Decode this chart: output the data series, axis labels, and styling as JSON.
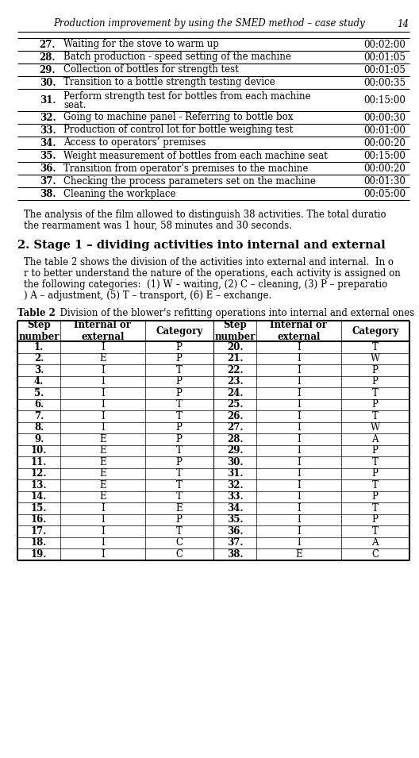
{
  "page_header": "Production improvement by using the SMED method – case study",
  "page_number": "14",
  "top_table_rows": [
    [
      "27.",
      "Waiting for the stove to warm up",
      "00:02:00"
    ],
    [
      "28.",
      "Batch production - speed setting of the machine",
      "00:01:05"
    ],
    [
      "29.",
      "Collection of bottles for strength test",
      "00:01:05"
    ],
    [
      "30.",
      "Transition to a bottle strength testing device",
      "00:00:35"
    ],
    [
      "31.",
      "Perform strength test for bottles from each machine\nseat.",
      "00:15:00"
    ],
    [
      "32.",
      "Going to machine panel - Referring to bottle box",
      "00:00:30"
    ],
    [
      "33.",
      "Production of control lot for bottle weighing test",
      "00:01:00"
    ],
    [
      "34.",
      "Access to operators’ premises",
      "00:00:20"
    ],
    [
      "35.",
      "Weight measurement of bottles from each machine seat",
      "00:15:00"
    ],
    [
      "36.",
      "Transition from operator’s premises to the machine",
      "00:00:20"
    ],
    [
      "37.",
      "Checking the process parameters set on the machine",
      "00:01:30"
    ],
    [
      "38.",
      "Cleaning the workplace",
      "00:05:00"
    ]
  ],
  "paragraph1_lines": [
    "The analysis of the film allowed to distinguish 38 activities. The total duratio",
    "the rearmament was 1 hour, 58 minutes and 30 seconds."
  ],
  "section_title": "2. Stage 1 – dividing activities into internal and external",
  "paragraph2_lines": [
    "The table 2 shows the division of the activities into external and internal.  In o",
    "r to better understand the nature of the operations, each activity is assigned on",
    "the following categories:  (1) W – waiting, (2) C – cleaning, (3) P – preparatio",
    ") A – adjustment, (5) T – transport, (6) E – exchange."
  ],
  "table2_caption": "Table 2   Division of the blower's refitting operations into internal and external ones",
  "table2_headers": [
    "Step\nnumber",
    "Internal or\nexternal",
    "Category",
    "Step\nnumber",
    "Internal or\nexternal",
    "Category"
  ],
  "table2_data": [
    [
      "1.",
      "I",
      "P",
      "20.",
      "I",
      "T"
    ],
    [
      "2.",
      "E",
      "P",
      "21.",
      "I",
      "W"
    ],
    [
      "3.",
      "I",
      "T",
      "22.",
      "I",
      "P"
    ],
    [
      "4.",
      "I",
      "P",
      "23.",
      "I",
      "P"
    ],
    [
      "5.",
      "I",
      "P",
      "24.",
      "I",
      "T"
    ],
    [
      "6.",
      "I",
      "T",
      "25.",
      "I",
      "P"
    ],
    [
      "7.",
      "I",
      "T",
      "26.",
      "I",
      "T"
    ],
    [
      "8.",
      "I",
      "P",
      "27.",
      "I",
      "W"
    ],
    [
      "9.",
      "E",
      "P",
      "28.",
      "I",
      "A"
    ],
    [
      "10.",
      "E",
      "T",
      "29.",
      "I",
      "P"
    ],
    [
      "11.",
      "E",
      "P",
      "30.",
      "I",
      "T"
    ],
    [
      "12.",
      "E",
      "T",
      "31.",
      "I",
      "P"
    ],
    [
      "13.",
      "E",
      "T",
      "32.",
      "I",
      "T"
    ],
    [
      "14.",
      "E",
      "T",
      "33.",
      "I",
      "P"
    ],
    [
      "15.",
      "I",
      "E",
      "34.",
      "I",
      "T"
    ],
    [
      "16.",
      "I",
      "P",
      "35.",
      "I",
      "P"
    ],
    [
      "17.",
      "I",
      "T",
      "36.",
      "I",
      "T"
    ],
    [
      "18.",
      "I",
      "C",
      "37.",
      "I",
      "A"
    ],
    [
      "19.",
      "I",
      "C",
      "38.",
      "E",
      "C"
    ]
  ]
}
